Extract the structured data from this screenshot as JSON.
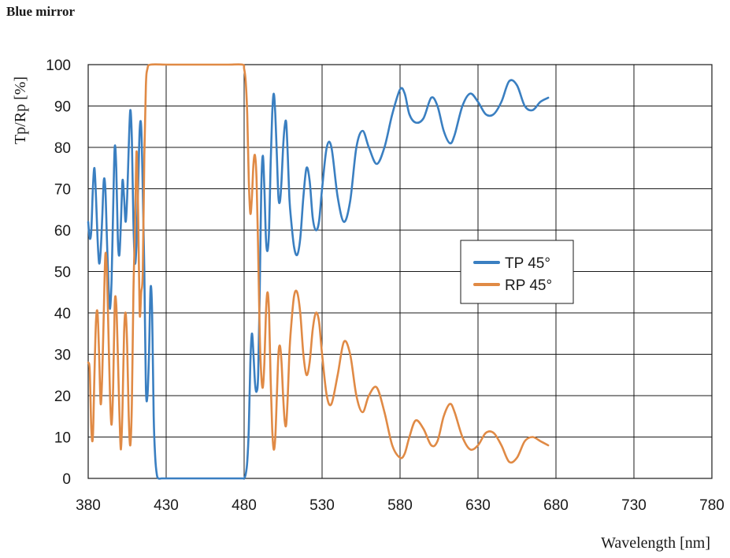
{
  "chart_data": {
    "type": "line",
    "title": "Blue mirror",
    "xlabel": "Wavelength [nm]",
    "ylabel": "Tp/Rp [%]",
    "xlim": [
      380,
      780
    ],
    "ylim": [
      0,
      100
    ],
    "xticks": [
      380,
      430,
      480,
      530,
      580,
      630,
      680,
      730,
      780
    ],
    "yticks": [
      0,
      10,
      20,
      30,
      40,
      50,
      60,
      70,
      80,
      90,
      100
    ],
    "grid": true,
    "legend_position": "center-right",
    "series": [
      {
        "name": "TP 45°",
        "color": "#3a7fc1",
        "points": [
          [
            380,
            62
          ],
          [
            381,
            58
          ],
          [
            382,
            60
          ],
          [
            383,
            70
          ],
          [
            384,
            75
          ],
          [
            385,
            68
          ],
          [
            386,
            58
          ],
          [
            387,
            52
          ],
          [
            388,
            55
          ],
          [
            389,
            63
          ],
          [
            390,
            72
          ],
          [
            391,
            70
          ],
          [
            392,
            58
          ],
          [
            393,
            47
          ],
          [
            394,
            41
          ],
          [
            395,
            48
          ],
          [
            396,
            65
          ],
          [
            397,
            80
          ],
          [
            398,
            75
          ],
          [
            399,
            58
          ],
          [
            400,
            54
          ],
          [
            401,
            62
          ],
          [
            402,
            72
          ],
          [
            403,
            68
          ],
          [
            404,
            62
          ],
          [
            405,
            68
          ],
          [
            406,
            80
          ],
          [
            407,
            89
          ],
          [
            408,
            82
          ],
          [
            409,
            62
          ],
          [
            410,
            52
          ],
          [
            411,
            57
          ],
          [
            412,
            70
          ],
          [
            413,
            84
          ],
          [
            414,
            85
          ],
          [
            415,
            70
          ],
          [
            416,
            50
          ],
          [
            417,
            22
          ],
          [
            418,
            20
          ],
          [
            419,
            30
          ],
          [
            420,
            46
          ],
          [
            421,
            40
          ],
          [
            422,
            15
          ],
          [
            423,
            5
          ],
          [
            424,
            1
          ],
          [
            425,
            0
          ],
          [
            427,
            0
          ],
          [
            430,
            0
          ],
          [
            440,
            0
          ],
          [
            450,
            0
          ],
          [
            460,
            0
          ],
          [
            470,
            0
          ],
          [
            479,
            0
          ],
          [
            480,
            0
          ],
          [
            481,
            1
          ],
          [
            482,
            4
          ],
          [
            483,
            12
          ],
          [
            484,
            28
          ],
          [
            485,
            35
          ],
          [
            486,
            30
          ],
          [
            487,
            23
          ],
          [
            488,
            21
          ],
          [
            489,
            25
          ],
          [
            490,
            45
          ],
          [
            491,
            70
          ],
          [
            492,
            78
          ],
          [
            493,
            70
          ],
          [
            494,
            58
          ],
          [
            495,
            55
          ],
          [
            496,
            60
          ],
          [
            497,
            76
          ],
          [
            498,
            88
          ],
          [
            499,
            93
          ],
          [
            500,
            88
          ],
          [
            501,
            78
          ],
          [
            502,
            68
          ],
          [
            503,
            67
          ],
          [
            504,
            72
          ],
          [
            505,
            80
          ],
          [
            506,
            85
          ],
          [
            507,
            86
          ],
          [
            508,
            78
          ],
          [
            509,
            68
          ],
          [
            510,
            63
          ],
          [
            512,
            56
          ],
          [
            514,
            54
          ],
          [
            516,
            58
          ],
          [
            518,
            68
          ],
          [
            520,
            75
          ],
          [
            522,
            72
          ],
          [
            524,
            63
          ],
          [
            526,
            60
          ],
          [
            528,
            62
          ],
          [
            530,
            70
          ],
          [
            533,
            80
          ],
          [
            536,
            80
          ],
          [
            540,
            68
          ],
          [
            544,
            62
          ],
          [
            548,
            67
          ],
          [
            552,
            80
          ],
          [
            556,
            84
          ],
          [
            560,
            80
          ],
          [
            565,
            76
          ],
          [
            570,
            80
          ],
          [
            575,
            88
          ],
          [
            580,
            94
          ],
          [
            583,
            93
          ],
          [
            586,
            88
          ],
          [
            590,
            86
          ],
          [
            595,
            87
          ],
          [
            600,
            92
          ],
          [
            604,
            90
          ],
          [
            608,
            84
          ],
          [
            612,
            81
          ],
          [
            615,
            83
          ],
          [
            620,
            90
          ],
          [
            625,
            93
          ],
          [
            630,
            91
          ],
          [
            635,
            88
          ],
          [
            640,
            88
          ],
          [
            645,
            91
          ],
          [
            650,
            96
          ],
          [
            655,
            95
          ],
          [
            660,
            90
          ],
          [
            665,
            89
          ],
          [
            670,
            91
          ],
          [
            675,
            92
          ]
        ]
      },
      {
        "name": "RP 45°",
        "color": "#e08a45",
        "points": [
          [
            380,
            28
          ],
          [
            381,
            26
          ],
          [
            382,
            12
          ],
          [
            383,
            10
          ],
          [
            384,
            25
          ],
          [
            385,
            38
          ],
          [
            386,
            40
          ],
          [
            387,
            30
          ],
          [
            388,
            18
          ],
          [
            389,
            25
          ],
          [
            390,
            40
          ],
          [
            391,
            54
          ],
          [
            392,
            50
          ],
          [
            393,
            35
          ],
          [
            394,
            20
          ],
          [
            395,
            13
          ],
          [
            396,
            22
          ],
          [
            397,
            42
          ],
          [
            398,
            42
          ],
          [
            399,
            30
          ],
          [
            400,
            16
          ],
          [
            401,
            7
          ],
          [
            402,
            17
          ],
          [
            403,
            35
          ],
          [
            404,
            40
          ],
          [
            405,
            32
          ],
          [
            406,
            15
          ],
          [
            407,
            8
          ],
          [
            408,
            18
          ],
          [
            409,
            45
          ],
          [
            410,
            60
          ],
          [
            411,
            79
          ],
          [
            412,
            65
          ],
          [
            413,
            40
          ],
          [
            414,
            45
          ],
          [
            415,
            50
          ],
          [
            416,
            78
          ],
          [
            417,
            95
          ],
          [
            418,
            99
          ],
          [
            420,
            100
          ],
          [
            430,
            100
          ],
          [
            440,
            100
          ],
          [
            450,
            100
          ],
          [
            460,
            100
          ],
          [
            470,
            100
          ],
          [
            479,
            100
          ],
          [
            480,
            99
          ],
          [
            481,
            96
          ],
          [
            482,
            88
          ],
          [
            483,
            72
          ],
          [
            484,
            64
          ],
          [
            485,
            68
          ],
          [
            486,
            76
          ],
          [
            487,
            78
          ],
          [
            488,
            72
          ],
          [
            489,
            55
          ],
          [
            490,
            35
          ],
          [
            491,
            25
          ],
          [
            492,
            22
          ],
          [
            493,
            28
          ],
          [
            494,
            40
          ],
          [
            495,
            45
          ],
          [
            496,
            40
          ],
          [
            497,
            24
          ],
          [
            498,
            12
          ],
          [
            499,
            7
          ],
          [
            500,
            10
          ],
          [
            501,
            20
          ],
          [
            502,
            30
          ],
          [
            503,
            32
          ],
          [
            504,
            28
          ],
          [
            505,
            20
          ],
          [
            506,
            14
          ],
          [
            507,
            13
          ],
          [
            508,
            20
          ],
          [
            509,
            30
          ],
          [
            510,
            36
          ],
          [
            512,
            44
          ],
          [
            514,
            45
          ],
          [
            516,
            40
          ],
          [
            518,
            30
          ],
          [
            520,
            25
          ],
          [
            522,
            28
          ],
          [
            524,
            36
          ],
          [
            526,
            40
          ],
          [
            528,
            38
          ],
          [
            530,
            30
          ],
          [
            533,
            20
          ],
          [
            536,
            18
          ],
          [
            540,
            25
          ],
          [
            544,
            33
          ],
          [
            548,
            30
          ],
          [
            552,
            20
          ],
          [
            556,
            16
          ],
          [
            560,
            20
          ],
          [
            565,
            22
          ],
          [
            570,
            16
          ],
          [
            575,
            8
          ],
          [
            580,
            5
          ],
          [
            583,
            6
          ],
          [
            586,
            10
          ],
          [
            590,
            14
          ],
          [
            595,
            12
          ],
          [
            600,
            8
          ],
          [
            604,
            9
          ],
          [
            608,
            15
          ],
          [
            612,
            18
          ],
          [
            615,
            16
          ],
          [
            620,
            10
          ],
          [
            625,
            7
          ],
          [
            630,
            8
          ],
          [
            635,
            11
          ],
          [
            640,
            11
          ],
          [
            645,
            8
          ],
          [
            650,
            4
          ],
          [
            655,
            5
          ],
          [
            660,
            9
          ],
          [
            665,
            10
          ],
          [
            670,
            9
          ],
          [
            675,
            8
          ]
        ]
      }
    ]
  }
}
